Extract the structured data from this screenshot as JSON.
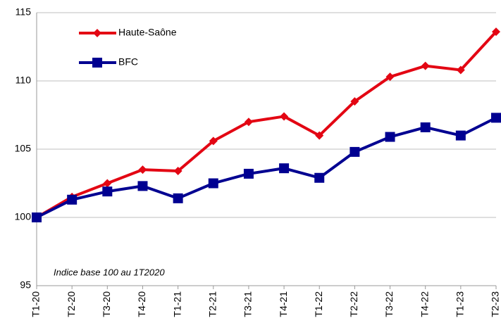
{
  "chart_data": {
    "type": "line",
    "annotation": "Indice base 100 au 1T2020",
    "categories": [
      "T1-20",
      "T2-20",
      "T3-20",
      "T4-20",
      "T1-21",
      "T2-21",
      "T3-21",
      "T4-21",
      "T1-22",
      "T2-22",
      "T3-22",
      "T4-22",
      "T1-23",
      "T2-23"
    ],
    "series": [
      {
        "name": "Haute-Saône",
        "color": "#e30613",
        "marker": "diamond",
        "values": [
          100,
          101.5,
          102.5,
          103.5,
          103.4,
          105.6,
          107.0,
          107.4,
          106.0,
          108.5,
          110.3,
          111.1,
          110.8,
          113.6
        ]
      },
      {
        "name": "BFC",
        "color": "#000091",
        "marker": "square",
        "values": [
          100,
          101.3,
          101.9,
          102.3,
          101.4,
          102.5,
          103.2,
          103.6,
          102.9,
          104.8,
          105.9,
          106.6,
          106.0,
          107.3
        ]
      }
    ],
    "ylim": [
      95,
      115
    ],
    "yticks": [
      95,
      100,
      105,
      110,
      115
    ],
    "grid": true,
    "legend": "upper-left"
  }
}
